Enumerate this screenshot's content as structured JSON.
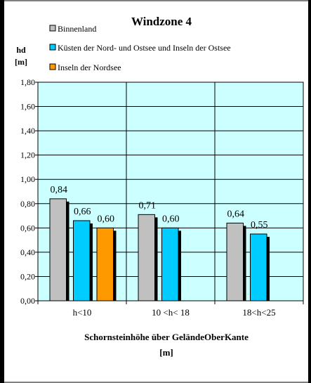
{
  "chart_data": {
    "type": "bar",
    "title": "Windzone 4",
    "ylabel_lines": [
      "hd",
      "[m]"
    ],
    "xlabel_lines": [
      "Schornsteinhöhe über GeländeOberKante",
      "[m]"
    ],
    "categories": [
      "h<10",
      "10 <h< 18",
      "18<h<25"
    ],
    "series": [
      {
        "name": "Binnenland",
        "color": "#c0c0c0",
        "values": [
          0.84,
          0.71,
          0.64
        ]
      },
      {
        "name": "Küsten der Nord- und Ostsee und Inseln der Ostsee",
        "color": "#00ccff",
        "values": [
          0.66,
          0.6,
          0.55
        ]
      },
      {
        "name": "Inseln der Nordsee",
        "color": "#ff9900",
        "values": [
          0.6,
          null,
          null
        ]
      }
    ],
    "data_labels": [
      [
        "0,84",
        "0,71",
        "0,64"
      ],
      [
        "0,66",
        "0,60",
        "0,55"
      ],
      [
        "0,60",
        "",
        ""
      ]
    ],
    "ylim": [
      0,
      1.8
    ],
    "yticks": [
      "0,00",
      "0,20",
      "0,40",
      "0,60",
      "0,80",
      "1,00",
      "1,20",
      "1,40",
      "1,60",
      "1,80"
    ],
    "plot_background": "#ccffff",
    "grid": true,
    "legend_position": "top"
  }
}
